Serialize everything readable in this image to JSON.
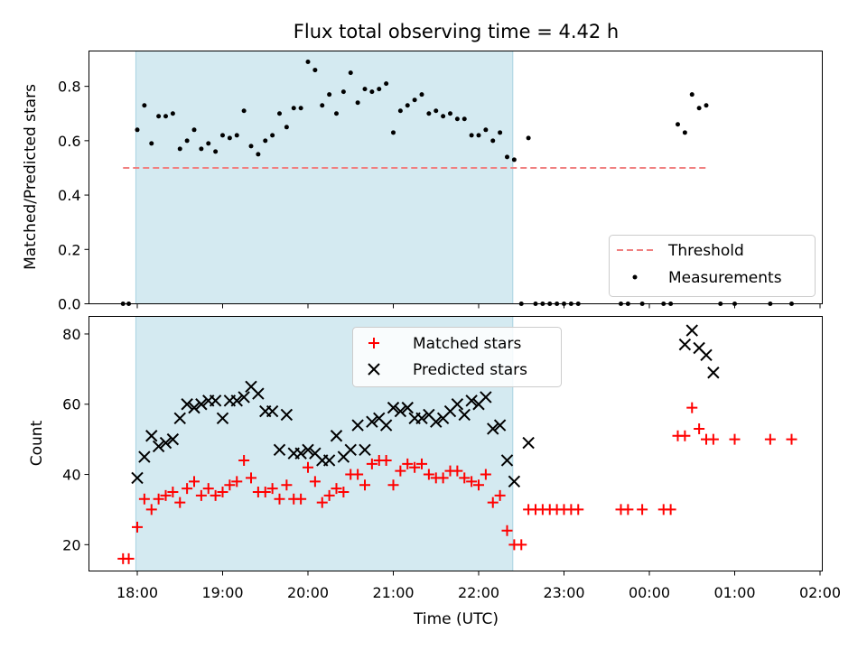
{
  "chart_data": {
    "title": "Flux total observing time = 4.42 h",
    "xlabel": "Time (UTC)",
    "x_ticks": [
      "18:00",
      "19:00",
      "20:00",
      "21:00",
      "22:00",
      "23:00",
      "00:00",
      "01:00",
      "02:00"
    ],
    "observing_window": {
      "start": "17:59",
      "end": "22:24",
      "color": "#d4eaf1"
    },
    "top_panel": {
      "type": "scatter",
      "ylabel": "Matched/Predicted stars",
      "ylim": [
        0,
        0.93
      ],
      "y_ticks": [
        "0.0",
        "0.2",
        "0.4",
        "0.6",
        "0.8"
      ],
      "threshold": {
        "name": "Threshold",
        "value": 0.5,
        "from": "17:50",
        "to": "00:40",
        "color": "#f08080"
      },
      "measurements": {
        "name": "Measurements",
        "color": "#000000",
        "points": [
          [
            "17:50",
            0.0
          ],
          [
            "17:54",
            0.0
          ],
          [
            "18:00",
            0.64
          ],
          [
            "18:05",
            0.73
          ],
          [
            "18:10",
            0.59
          ],
          [
            "18:15",
            0.69
          ],
          [
            "18:20",
            0.69
          ],
          [
            "18:25",
            0.7
          ],
          [
            "18:30",
            0.57
          ],
          [
            "18:35",
            0.6
          ],
          [
            "18:40",
            0.64
          ],
          [
            "18:45",
            0.57
          ],
          [
            "18:50",
            0.59
          ],
          [
            "18:55",
            0.56
          ],
          [
            "19:00",
            0.62
          ],
          [
            "19:05",
            0.61
          ],
          [
            "19:10",
            0.62
          ],
          [
            "19:15",
            0.71
          ],
          [
            "19:20",
            0.58
          ],
          [
            "19:25",
            0.55
          ],
          [
            "19:30",
            0.6
          ],
          [
            "19:35",
            0.62
          ],
          [
            "19:40",
            0.7
          ],
          [
            "19:45",
            0.65
          ],
          [
            "19:50",
            0.72
          ],
          [
            "19:55",
            0.72
          ],
          [
            "20:00",
            0.89
          ],
          [
            "20:05",
            0.86
          ],
          [
            "20:10",
            0.73
          ],
          [
            "20:15",
            0.77
          ],
          [
            "20:20",
            0.7
          ],
          [
            "20:25",
            0.78
          ],
          [
            "20:30",
            0.85
          ],
          [
            "20:35",
            0.74
          ],
          [
            "20:40",
            0.79
          ],
          [
            "20:45",
            0.78
          ],
          [
            "20:50",
            0.79
          ],
          [
            "20:55",
            0.81
          ],
          [
            "21:00",
            0.63
          ],
          [
            "21:05",
            0.71
          ],
          [
            "21:10",
            0.73
          ],
          [
            "21:15",
            0.75
          ],
          [
            "21:20",
            0.77
          ],
          [
            "21:25",
            0.7
          ],
          [
            "21:30",
            0.71
          ],
          [
            "21:35",
            0.69
          ],
          [
            "21:40",
            0.7
          ],
          [
            "21:45",
            0.68
          ],
          [
            "21:50",
            0.68
          ],
          [
            "21:55",
            0.62
          ],
          [
            "22:00",
            0.62
          ],
          [
            "22:05",
            0.64
          ],
          [
            "22:10",
            0.6
          ],
          [
            "22:15",
            0.63
          ],
          [
            "22:20",
            0.54
          ],
          [
            "22:25",
            0.53
          ],
          [
            "22:30",
            0.0
          ],
          [
            "22:35",
            0.61
          ],
          [
            "22:40",
            0.0
          ],
          [
            "22:45",
            0.0
          ],
          [
            "22:50",
            0.0
          ],
          [
            "22:55",
            0.0
          ],
          [
            "23:00",
            0.0
          ],
          [
            "23:05",
            0.0
          ],
          [
            "23:10",
            0.0
          ],
          [
            "23:40",
            0.0
          ],
          [
            "23:45",
            0.0
          ],
          [
            "23:55",
            0.0
          ],
          [
            "00:10",
            0.0
          ],
          [
            "00:15",
            0.0
          ],
          [
            "00:20",
            0.66
          ],
          [
            "00:25",
            0.63
          ],
          [
            "00:30",
            0.77
          ],
          [
            "00:35",
            0.72
          ],
          [
            "00:40",
            0.73
          ],
          [
            "00:50",
            0.0
          ],
          [
            "01:00",
            0.0
          ],
          [
            "01:25",
            0.0
          ],
          [
            "01:40",
            0.0
          ]
        ]
      },
      "legend": {
        "position": "lower right",
        "entries": [
          "Threshold",
          "Measurements"
        ]
      }
    },
    "bottom_panel": {
      "type": "scatter",
      "ylabel": "Count",
      "ylim": [
        12.5,
        85
      ],
      "y_ticks": [
        "20",
        "40",
        "60",
        "80"
      ],
      "series": [
        {
          "name": "Matched stars",
          "marker": "+",
          "color": "#ff0000",
          "points": [
            [
              "17:50",
              16
            ],
            [
              "17:54",
              16
            ],
            [
              "18:00",
              25
            ],
            [
              "18:05",
              33
            ],
            [
              "18:10",
              30
            ],
            [
              "18:15",
              33
            ],
            [
              "18:20",
              34
            ],
            [
              "18:25",
              35
            ],
            [
              "18:30",
              32
            ],
            [
              "18:35",
              36
            ],
            [
              "18:40",
              38
            ],
            [
              "18:45",
              34
            ],
            [
              "18:50",
              36
            ],
            [
              "18:55",
              34
            ],
            [
              "19:00",
              35
            ],
            [
              "19:05",
              37
            ],
            [
              "19:10",
              38
            ],
            [
              "19:15",
              44
            ],
            [
              "19:20",
              39
            ],
            [
              "19:25",
              35
            ],
            [
              "19:30",
              35
            ],
            [
              "19:35",
              36
            ],
            [
              "19:40",
              33
            ],
            [
              "19:45",
              37
            ],
            [
              "19:50",
              33
            ],
            [
              "19:55",
              33
            ],
            [
              "20:00",
              42
            ],
            [
              "20:05",
              38
            ],
            [
              "20:10",
              32
            ],
            [
              "20:15",
              34
            ],
            [
              "20:20",
              36
            ],
            [
              "20:25",
              35
            ],
            [
              "20:30",
              40
            ],
            [
              "20:35",
              40
            ],
            [
              "20:40",
              37
            ],
            [
              "20:45",
              43
            ],
            [
              "20:50",
              44
            ],
            [
              "20:55",
              44
            ],
            [
              "21:00",
              37
            ],
            [
              "21:05",
              41
            ],
            [
              "21:10",
              43
            ],
            [
              "21:15",
              42
            ],
            [
              "21:20",
              43
            ],
            [
              "21:25",
              40
            ],
            [
              "21:30",
              39
            ],
            [
              "21:35",
              39
            ],
            [
              "21:40",
              41
            ],
            [
              "21:45",
              41
            ],
            [
              "21:50",
              39
            ],
            [
              "21:55",
              38
            ],
            [
              "22:00",
              37
            ],
            [
              "22:05",
              40
            ],
            [
              "22:10",
              32
            ],
            [
              "22:15",
              34
            ],
            [
              "22:20",
              24
            ],
            [
              "22:25",
              20
            ],
            [
              "22:30",
              20
            ],
            [
              "22:35",
              30
            ],
            [
              "22:40",
              30
            ],
            [
              "22:45",
              30
            ],
            [
              "22:50",
              30
            ],
            [
              "22:55",
              30
            ],
            [
              "23:00",
              30
            ],
            [
              "23:05",
              30
            ],
            [
              "23:10",
              30
            ],
            [
              "23:40",
              30
            ],
            [
              "23:45",
              30
            ],
            [
              "23:55",
              30
            ],
            [
              "00:10",
              30
            ],
            [
              "00:15",
              30
            ],
            [
              "00:20",
              51
            ],
            [
              "00:25",
              51
            ],
            [
              "00:30",
              59
            ],
            [
              "00:35",
              53
            ],
            [
              "00:40",
              50
            ],
            [
              "00:45",
              50
            ],
            [
              "01:00",
              50
            ],
            [
              "01:25",
              50
            ],
            [
              "01:40",
              50
            ]
          ]
        },
        {
          "name": "Predicted stars",
          "marker": "x",
          "color": "#000000",
          "points": [
            [
              "18:00",
              39
            ],
            [
              "18:05",
              45
            ],
            [
              "18:10",
              51
            ],
            [
              "18:15",
              48
            ],
            [
              "18:20",
              49
            ],
            [
              "18:25",
              50
            ],
            [
              "18:30",
              56
            ],
            [
              "18:35",
              60
            ],
            [
              "18:40",
              59
            ],
            [
              "18:45",
              60
            ],
            [
              "18:50",
              61
            ],
            [
              "18:55",
              61
            ],
            [
              "19:00",
              56
            ],
            [
              "19:05",
              61
            ],
            [
              "19:10",
              61
            ],
            [
              "19:15",
              62
            ],
            [
              "19:20",
              65
            ],
            [
              "19:25",
              63
            ],
            [
              "19:30",
              58
            ],
            [
              "19:35",
              58
            ],
            [
              "19:40",
              47
            ],
            [
              "19:45",
              57
            ],
            [
              "19:50",
              46
            ],
            [
              "19:55",
              46
            ],
            [
              "20:00",
              47
            ],
            [
              "20:05",
              46
            ],
            [
              "20:10",
              44
            ],
            [
              "20:15",
              44
            ],
            [
              "20:20",
              51
            ],
            [
              "20:25",
              45
            ],
            [
              "20:30",
              47
            ],
            [
              "20:35",
              54
            ],
            [
              "20:40",
              47
            ],
            [
              "20:45",
              55
            ],
            [
              "20:50",
              56
            ],
            [
              "20:55",
              54
            ],
            [
              "21:00",
              59
            ],
            [
              "21:05",
              58
            ],
            [
              "21:10",
              59
            ],
            [
              "21:15",
              56
            ],
            [
              "21:20",
              56
            ],
            [
              "21:25",
              57
            ],
            [
              "21:30",
              55
            ],
            [
              "21:35",
              56
            ],
            [
              "21:40",
              58
            ],
            [
              "21:45",
              60
            ],
            [
              "21:50",
              57
            ],
            [
              "21:55",
              61
            ],
            [
              "22:00",
              60
            ],
            [
              "22:05",
              62
            ],
            [
              "22:10",
              53
            ],
            [
              "22:15",
              54
            ],
            [
              "22:20",
              44
            ],
            [
              "22:25",
              38
            ],
            [
              "22:35",
              49
            ],
            [
              "00:25",
              77
            ],
            [
              "00:30",
              81
            ],
            [
              "00:35",
              76
            ],
            [
              "00:40",
              74
            ],
            [
              "00:45",
              69
            ]
          ]
        }
      ],
      "legend": {
        "position": "upper center",
        "entries": [
          "Matched stars",
          "Predicted stars"
        ]
      }
    }
  }
}
